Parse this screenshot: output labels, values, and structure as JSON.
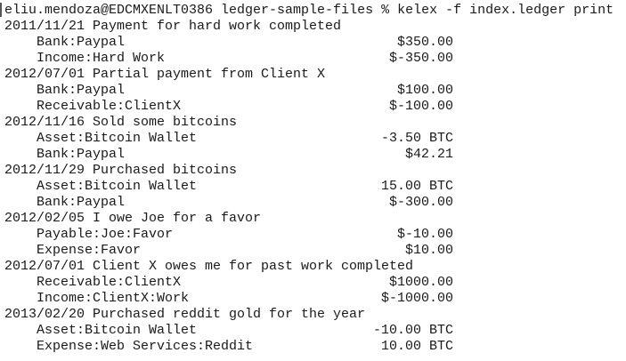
{
  "terminal": {
    "prompt": "eliu.mendoza@EDCMXENLT0386 ledger-sample-files % kelex -f index.ledger print",
    "transactions": [
      {
        "date": "2011/11/21",
        "payee": "Payment for hard work completed",
        "postings": [
          {
            "account": "Bank:Paypal",
            "amount": "$350.00"
          },
          {
            "account": "Income:Hard Work",
            "amount": "$-350.00"
          }
        ]
      },
      {
        "date": "2012/07/01",
        "payee": "Partial payment from Client X",
        "postings": [
          {
            "account": "Bank:Paypal",
            "amount": "$100.00"
          },
          {
            "account": "Receivable:ClientX",
            "amount": "$-100.00"
          }
        ]
      },
      {
        "date": "2012/11/16",
        "payee": "Sold some bitcoins",
        "postings": [
          {
            "account": "Asset:Bitcoin Wallet",
            "amount": "-3.50 BTC"
          },
          {
            "account": "Bank:Paypal",
            "amount": "$42.21"
          }
        ]
      },
      {
        "date": "2012/11/29",
        "payee": "Purchased bitcoins",
        "postings": [
          {
            "account": "Asset:Bitcoin Wallet",
            "amount": "15.00 BTC"
          },
          {
            "account": "Bank:Paypal",
            "amount": "$-300.00"
          }
        ]
      },
      {
        "date": "2012/02/05",
        "payee": "I owe Joe for a favor",
        "postings": [
          {
            "account": "Payable:Joe:Favor",
            "amount": "$-10.00"
          },
          {
            "account": "Expense:Favor",
            "amount": "$10.00"
          }
        ]
      },
      {
        "date": "2012/07/01",
        "payee": "Client X owes me for past work completed",
        "postings": [
          {
            "account": "Receivable:ClientX",
            "amount": "$1000.00"
          },
          {
            "account": "Income:ClientX:Work",
            "amount": "$-1000.00"
          }
        ]
      },
      {
        "date": "2013/02/20",
        "payee": "Purchased reddit gold for the year",
        "postings": [
          {
            "account": "Asset:Bitcoin Wallet",
            "amount": "-10.00 BTC"
          },
          {
            "account": "Expense:Web Services:Reddit",
            "amount": "10.00 BTC"
          }
        ]
      }
    ]
  }
}
